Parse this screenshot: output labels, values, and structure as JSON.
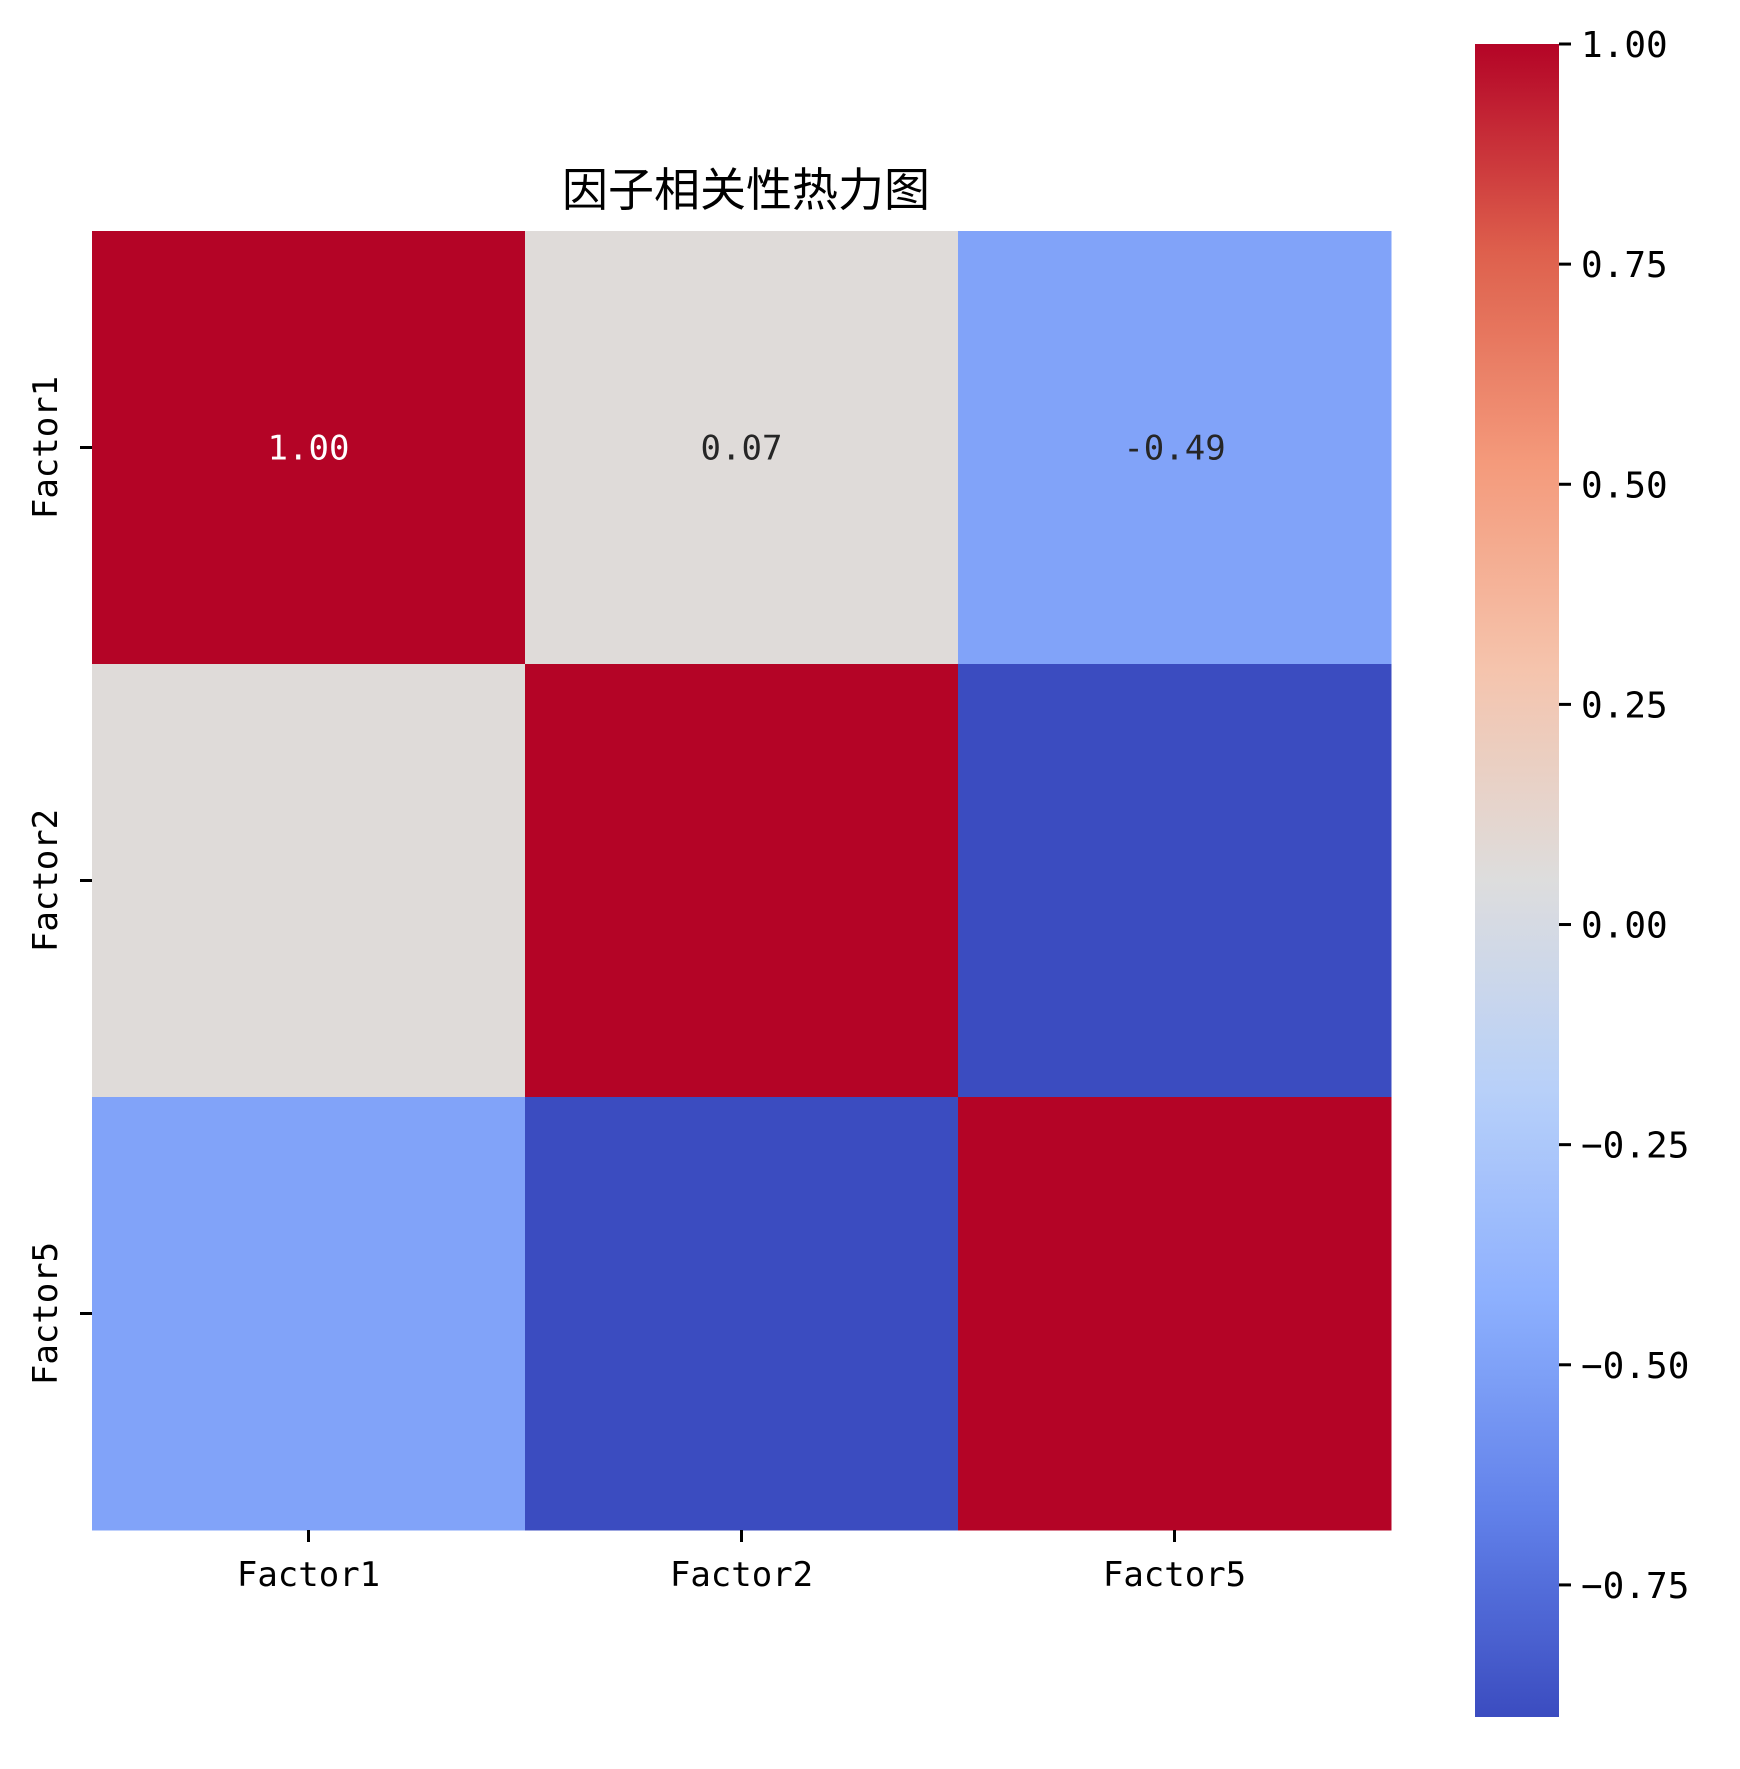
{
  "chart_data": {
    "type": "heatmap",
    "title": "因子相关性热力图",
    "rows": [
      "Factor1",
      "Factor2",
      "Factor5"
    ],
    "columns": [
      "Factor1",
      "Factor2",
      "Factor5"
    ],
    "values": [
      [
        1.0,
        0.07,
        -0.49
      ],
      [
        0.07,
        1.0,
        -0.9
      ],
      [
        -0.49,
        -0.9,
        1.0
      ]
    ],
    "cell_labels": [
      [
        "1.00",
        "0.07",
        "-0.49"
      ],
      [
        "",
        "",
        ""
      ],
      [
        "",
        "",
        ""
      ]
    ],
    "colormap": "coolwarm",
    "colorbar": {
      "range": [
        -0.9,
        1.0
      ],
      "ticks": [
        1.0,
        0.75,
        0.5,
        0.25,
        0.0,
        -0.25,
        -0.5,
        -0.75
      ],
      "tick_labels": [
        "1.00",
        "0.75",
        "0.50",
        "0.25",
        "0.00",
        "−0.25",
        "−0.50",
        "−0.75"
      ]
    }
  }
}
